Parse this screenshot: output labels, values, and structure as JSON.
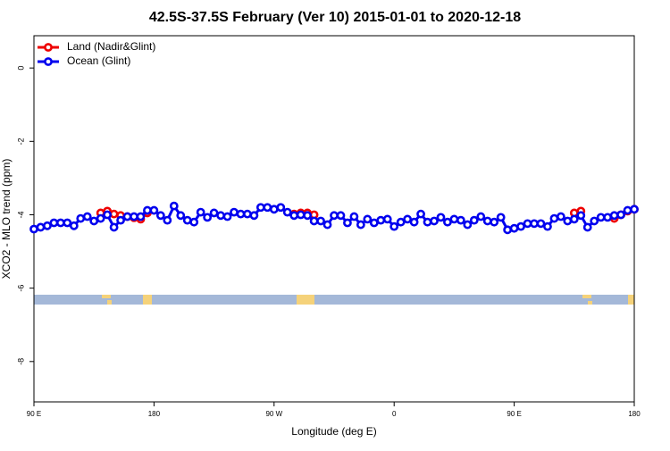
{
  "chart_data": {
    "type": "line",
    "title": "42.5S-37.5S February (Ver 10)   2015-01-01 to 2020-12-18",
    "x_label": "Longitude (deg E)",
    "y_label": "XCO2 - MLO trend (ppm)",
    "xlim": [
      90,
      540
    ],
    "xticks": [
      {
        "value": 90,
        "label": "90 E"
      },
      {
        "value": 180,
        "label": "180"
      },
      {
        "value": 270,
        "label": "90 W"
      },
      {
        "value": 360,
        "label": "0"
      },
      {
        "value": 450,
        "label": "90 E"
      },
      {
        "value": 540,
        "label": "180"
      }
    ],
    "ylim": [
      -9.1,
      0.88
    ],
    "yticks": [
      -8,
      -6,
      -4,
      -2,
      0
    ],
    "legend": "top-left",
    "x": [
      90,
      95,
      100,
      105,
      110,
      115,
      120,
      125,
      130,
      135,
      140,
      145,
      150,
      155,
      160,
      165,
      170,
      175,
      180,
      185,
      190,
      195,
      200,
      205,
      210,
      215,
      220,
      225,
      230,
      235,
      240,
      245,
      250,
      255,
      260,
      265,
      270,
      275,
      280,
      285,
      290,
      295,
      300,
      305,
      310,
      315,
      320,
      325,
      330,
      335,
      340,
      345,
      350,
      355,
      360,
      365,
      370,
      375,
      380,
      385,
      390,
      395,
      400,
      405,
      410,
      415,
      420,
      425,
      430,
      435,
      440,
      445,
      450,
      455,
      460,
      465,
      470,
      475,
      480,
      485,
      490,
      495,
      500,
      505,
      510,
      515,
      520,
      525,
      530,
      535,
      540
    ],
    "series": [
      {
        "name": "Land (Nadir&Glint)",
        "color": "#ee0000",
        "values": [
          null,
          null,
          null,
          null,
          null,
          null,
          null,
          null,
          null,
          null,
          -3.95,
          -3.9,
          -3.98,
          -4.02,
          -4.05,
          -4.08,
          -4.12,
          -3.95,
          null,
          null,
          null,
          null,
          null,
          null,
          null,
          null,
          null,
          null,
          null,
          null,
          null,
          null,
          null,
          null,
          null,
          null,
          null,
          null,
          null,
          -3.98,
          -3.95,
          -3.95,
          -4.0,
          null,
          null,
          null,
          null,
          null,
          null,
          null,
          null,
          null,
          null,
          null,
          null,
          null,
          null,
          null,
          null,
          null,
          null,
          null,
          null,
          null,
          null,
          null,
          null,
          null,
          null,
          null,
          null,
          null,
          null,
          null,
          null,
          null,
          null,
          null,
          null,
          null,
          null,
          -3.95,
          -3.9,
          null,
          null,
          null,
          null,
          -4.1,
          -4.0,
          -3.9,
          -3.85
        ]
      },
      {
        "name": "Ocean (Glint)",
        "color": "#0000ee",
        "values": [
          -4.39,
          -4.34,
          -4.3,
          -4.22,
          -4.22,
          -4.22,
          -4.3,
          -4.1,
          -4.05,
          -4.17,
          -4.1,
          -4.0,
          -4.34,
          -4.15,
          -4.05,
          -4.05,
          -4.05,
          -3.88,
          -3.88,
          -4.02,
          -4.15,
          -3.76,
          -4.02,
          -4.15,
          -4.2,
          -3.93,
          -4.07,
          -3.95,
          -4.02,
          -4.05,
          -3.93,
          -3.98,
          -3.98,
          -4.02,
          -3.8,
          -3.8,
          -3.85,
          -3.8,
          -3.93,
          -4.02,
          -4.0,
          -4.02,
          -4.17,
          -4.17,
          -4.27,
          -4.02,
          -4.02,
          -4.22,
          -4.05,
          -4.27,
          -4.12,
          -4.22,
          -4.15,
          -4.12,
          -4.32,
          -4.2,
          -4.12,
          -4.2,
          -3.98,
          -4.2,
          -4.17,
          -4.07,
          -4.2,
          -4.12,
          -4.15,
          -4.27,
          -4.15,
          -4.05,
          -4.17,
          -4.2,
          -4.07,
          -4.41,
          -4.37,
          -4.32,
          -4.24,
          -4.24,
          -4.24,
          -4.32,
          -4.1,
          -4.05,
          -4.17,
          -4.12,
          -4.02,
          -4.34,
          -4.17,
          -4.07,
          -4.07,
          -4.02,
          -4.0,
          -3.88,
          -3.85
        ]
      }
    ]
  }
}
